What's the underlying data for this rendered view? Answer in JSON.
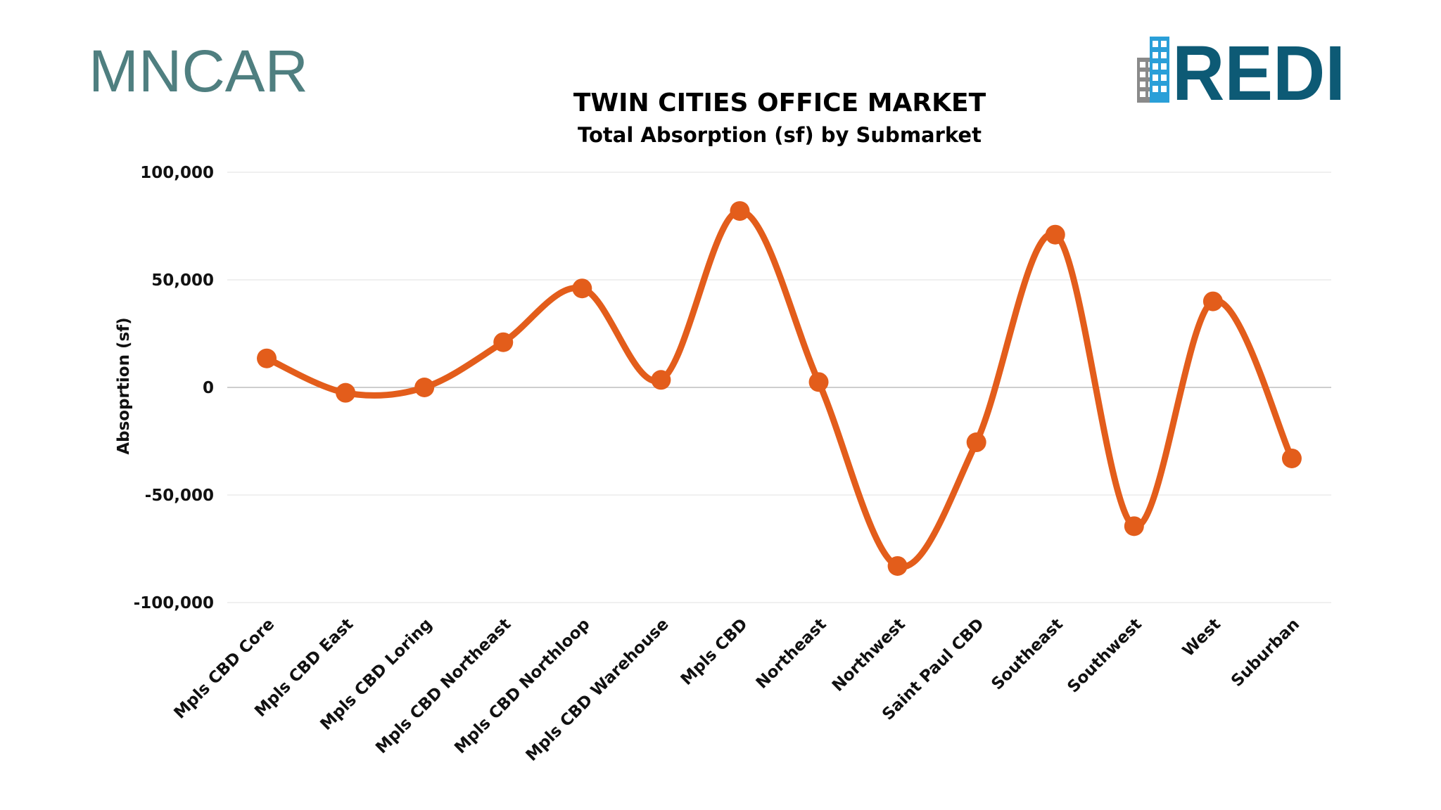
{
  "logos": {
    "left_text": "MNCAR",
    "right_text": "REDI",
    "left_color": "#4f7f80",
    "right_color": "#0d5a75",
    "right_accent": "#2a9fd8"
  },
  "colors": {
    "series": "#e35d1b",
    "grid": "#e6e6e6",
    "zero_line": "#bdbdbd"
  },
  "chart_data": {
    "type": "line",
    "title": "TWIN CITIES OFFICE MARKET",
    "subtitle": "Total Absorption (sf) by Submarket",
    "xlabel": "",
    "ylabel": "Absoprtion (sf)",
    "ylim": [
      -100000,
      100000
    ],
    "yticks": [
      100000,
      50000,
      0,
      -50000,
      -100000
    ],
    "ytick_labels": [
      "100,000",
      "50,000",
      "0",
      "-50,000",
      "-100,000"
    ],
    "grid": true,
    "legend": "none",
    "smooth": true,
    "categories": [
      "Mpls CBD Core",
      "Mpls CBD East",
      "Mpls CBD Loring",
      "Mpls CBD Northeast",
      "Mpls CBD Northloop",
      "Mpls CBD Warehouse",
      "Mpls CBD",
      "Northeast",
      "Northwest",
      "Saint Paul CBD",
      "Southeast",
      "Southwest",
      "West",
      "Suburban"
    ],
    "series": [
      {
        "values": [
          13500,
          -2500,
          0,
          21000,
          46000,
          3500,
          82000,
          2500,
          -83000,
          -25500,
          71000,
          -64500,
          40000,
          -33000
        ]
      }
    ]
  }
}
